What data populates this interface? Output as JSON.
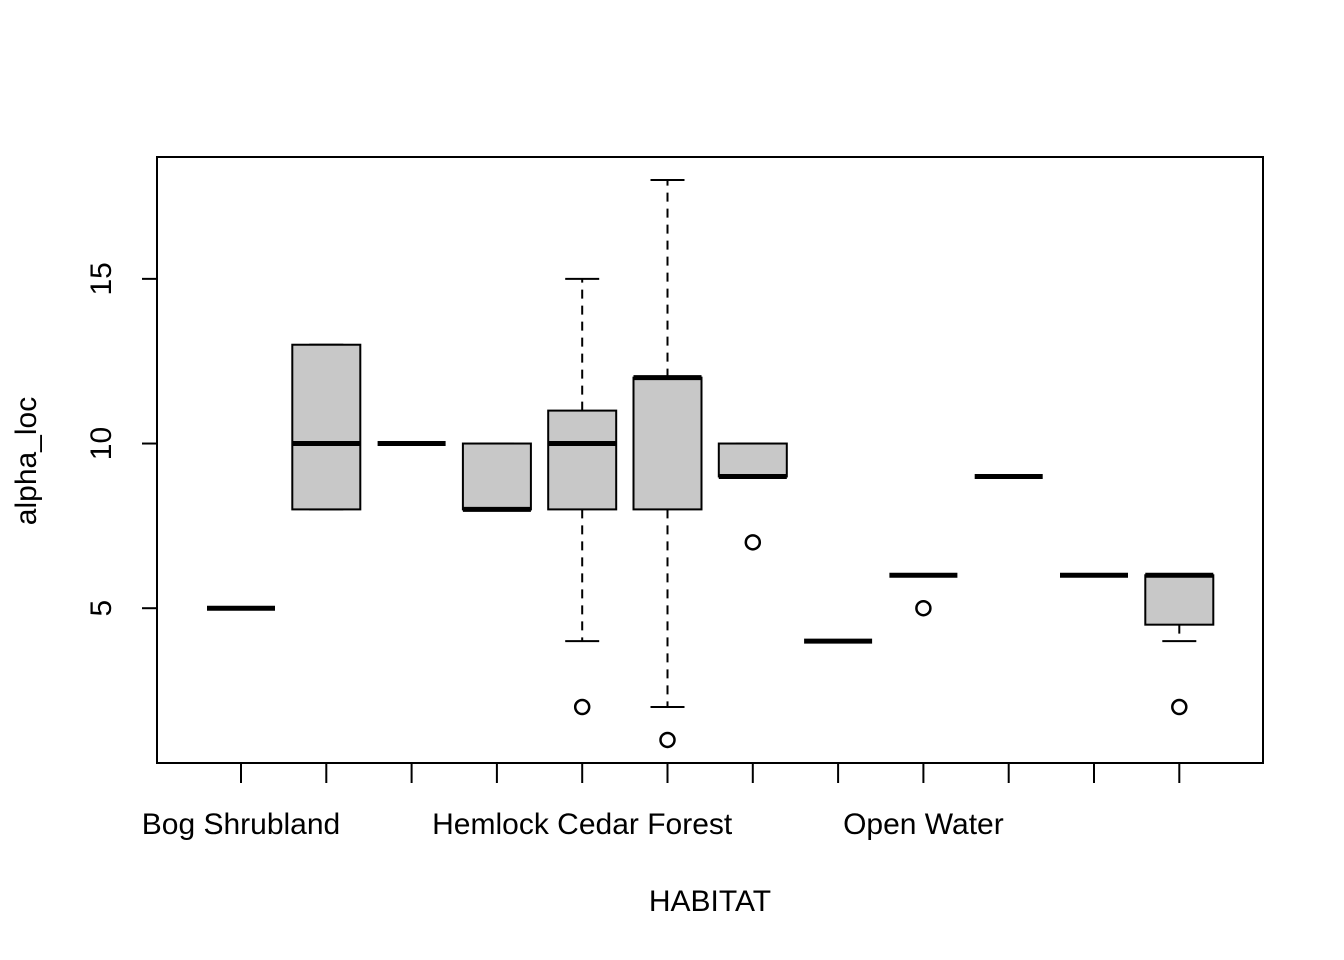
{
  "chart_data": {
    "type": "boxplot",
    "xlabel": "HABITAT",
    "ylabel": "alpha_loc",
    "ylim": [
      0.3,
      18.7
    ],
    "yticks": [
      5,
      10,
      15
    ],
    "visible_category_labels": [
      {
        "index": 0,
        "label": "Bog Shrubland"
      },
      {
        "index": 4,
        "label": "Hemlock Cedar Forest"
      },
      {
        "index": 8,
        "label": "Open  Water"
      }
    ],
    "box_fill": "#c8c8c8",
    "boxes": [
      {
        "min": 5,
        "q1": 5,
        "median": 5,
        "q3": 5,
        "max": 5,
        "outliers": []
      },
      {
        "min": 8,
        "q1": 8,
        "median": 10,
        "q3": 13,
        "max": 13,
        "outliers": []
      },
      {
        "min": 10,
        "q1": 10,
        "median": 10,
        "q3": 10,
        "max": 10,
        "outliers": []
      },
      {
        "min": 8,
        "q1": 8,
        "median": 8,
        "q3": 10,
        "max": 10,
        "outliers": []
      },
      {
        "min": 4,
        "q1": 8,
        "median": 10,
        "q3": 11,
        "max": 15,
        "outliers": [
          2
        ]
      },
      {
        "min": 2,
        "q1": 8,
        "median": 12,
        "q3": 12,
        "max": 18,
        "outliers": [
          1
        ]
      },
      {
        "min": 9,
        "q1": 9,
        "median": 9,
        "q3": 10,
        "max": 10,
        "outliers": [
          7
        ]
      },
      {
        "min": 4,
        "q1": 4,
        "median": 4,
        "q3": 4,
        "max": 4,
        "outliers": []
      },
      {
        "min": 6,
        "q1": 6,
        "median": 6,
        "q3": 6,
        "max": 6,
        "outliers": [
          5
        ]
      },
      {
        "min": 9,
        "q1": 9,
        "median": 9,
        "q3": 9,
        "max": 9,
        "outliers": []
      },
      {
        "min": 6,
        "q1": 6,
        "median": 6,
        "q3": 6,
        "max": 6,
        "outliers": []
      },
      {
        "min": 4,
        "q1": 4.5,
        "median": 6,
        "q3": 6,
        "max": 6,
        "outliers": [
          2
        ]
      }
    ]
  }
}
